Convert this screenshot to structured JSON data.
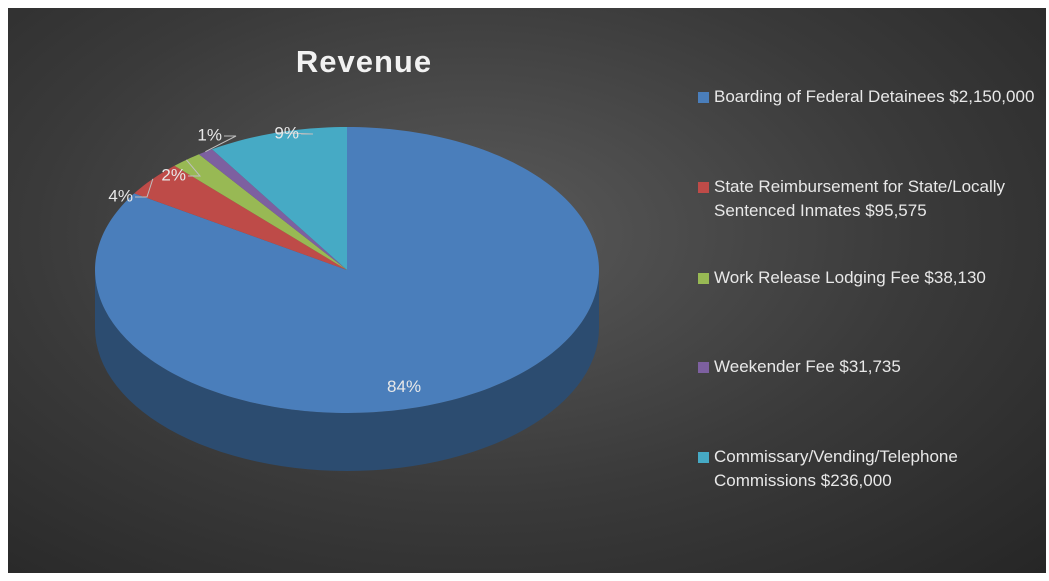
{
  "chart_data": {
    "type": "pie",
    "title": "Revenue",
    "categories": [
      "Boarding of Federal Detainees $2,150,000",
      "State Reimbursement for State/Locally Sentenced Inmates $95,575",
      "Work Release Lodging Fee $38,130",
      "Weekender Fee $31,735",
      "Commissary/Vending/Telephone Commissions $236,000"
    ],
    "values": [
      84,
      4,
      2,
      1,
      9
    ],
    "value_labels": [
      "84%",
      "4%",
      "2%",
      "1%",
      "9%"
    ],
    "colors": [
      "#4a7ebb",
      "#be4b48",
      "#98b954",
      "#7d60a0",
      "#46aac5"
    ],
    "legend": "right"
  }
}
